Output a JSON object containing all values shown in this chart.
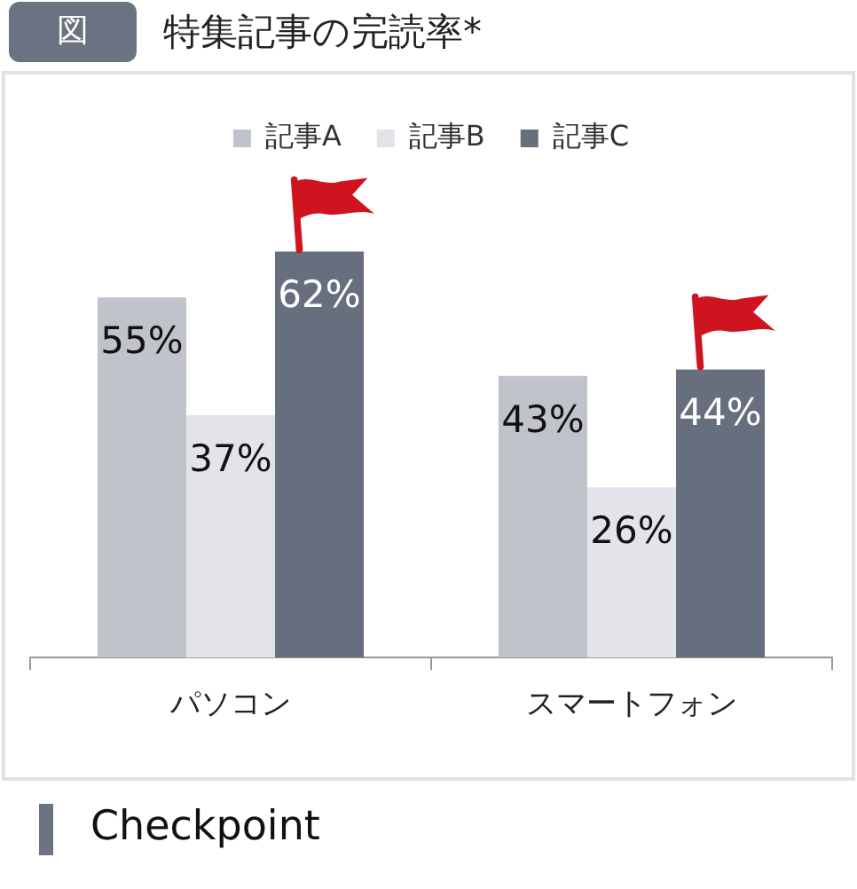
{
  "chart_data": {
    "type": "bar",
    "title": "特集記事の完読率*",
    "annotations": [
      "図",
      "Checkpoint"
    ],
    "categories": [
      "パソコン",
      "スマートフォン"
    ],
    "series": [
      {
        "name": "記事A",
        "color": "#c0c3ca",
        "values": [
          55,
          43
        ],
        "value_labels": [
          "55%",
          "43%"
        ]
      },
      {
        "name": "記事B",
        "color": "#e3e4e9",
        "values": [
          37,
          26
        ],
        "value_labels": [
          "37%",
          "26%"
        ]
      },
      {
        "name": "記事C",
        "color": "#676f7e",
        "values": [
          62,
          44
        ],
        "value_labels": [
          "62%",
          "44%"
        ]
      }
    ],
    "legend": "top",
    "tick_labels": "x"
  }
}
